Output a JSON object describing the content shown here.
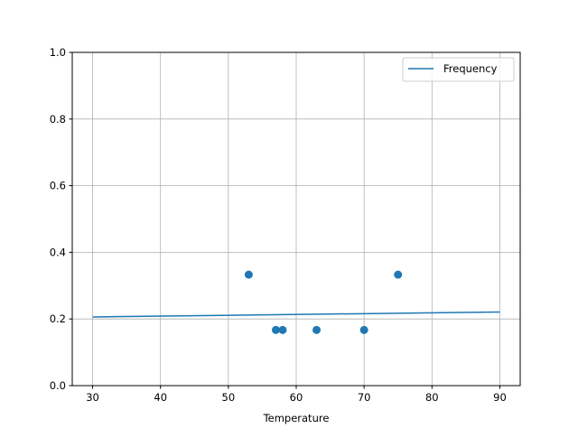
{
  "chart_data": {
    "type": "scatter",
    "title": "",
    "xlabel": "Temperature",
    "ylabel": "",
    "xlim": [
      27,
      93
    ],
    "ylim": [
      0.0,
      1.0
    ],
    "grid": true,
    "legend_position": "upper-right",
    "xticks": [
      30,
      40,
      50,
      60,
      70,
      80,
      90
    ],
    "xtick_labels": [
      "30",
      "40",
      "50",
      "60",
      "70",
      "80",
      "90"
    ],
    "yticks": [
      0.0,
      0.2,
      0.4,
      0.6,
      0.8,
      1.0
    ],
    "ytick_labels": [
      "0.0",
      "0.2",
      "0.4",
      "0.6",
      "0.8",
      "1.0"
    ],
    "points": {
      "x": [
        53,
        57,
        58,
        63,
        70,
        75
      ],
      "y": [
        0.333,
        0.167,
        0.167,
        0.167,
        0.167,
        0.333
      ],
      "color": "#1f77b4"
    },
    "series": [
      {
        "name": "Frequency",
        "type": "line",
        "x": [
          30,
          90
        ],
        "y": [
          0.206,
          0.221
        ],
        "color": "#1f77b4"
      }
    ]
  }
}
